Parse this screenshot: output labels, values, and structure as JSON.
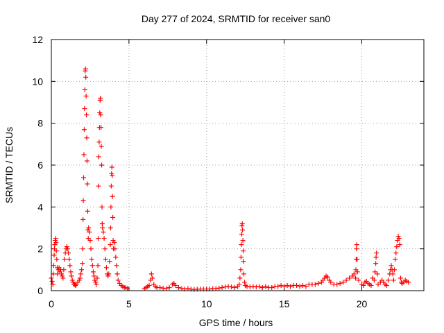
{
  "chart_data": {
    "type": "scatter",
    "title": "Day 277 of 2024, SRMTID for receiver san0",
    "xlabel": "GPS time / hours",
    "ylabel": "SRMTID / TECUs",
    "xlim": [
      0,
      24
    ],
    "ylim": [
      0,
      12
    ],
    "xticks": [
      0,
      5,
      10,
      15,
      20
    ],
    "yticks": [
      0,
      2,
      4,
      6,
      8,
      10,
      12
    ],
    "grid": true,
    "marker": "+",
    "series": [
      {
        "name": "san0",
        "color": "#ff0000",
        "points": [
          [
            0.0,
            0.6
          ],
          [
            0.05,
            0.45
          ],
          [
            0.1,
            0.3
          ],
          [
            0.12,
            0.8
          ],
          [
            0.15,
            1.2
          ],
          [
            0.18,
            1.7
          ],
          [
            0.2,
            2.0
          ],
          [
            0.22,
            2.2
          ],
          [
            0.25,
            2.4
          ],
          [
            0.28,
            2.5
          ],
          [
            0.3,
            2.3
          ],
          [
            0.32,
            1.9
          ],
          [
            0.35,
            1.5
          ],
          [
            0.38,
            1.1
          ],
          [
            0.4,
            0.8
          ],
          [
            0.45,
            1.0
          ],
          [
            0.5,
            1.1
          ],
          [
            0.55,
            0.9
          ],
          [
            0.6,
            1.0
          ],
          [
            0.65,
            0.8
          ],
          [
            0.7,
            0.7
          ],
          [
            0.75,
            0.6
          ],
          [
            0.8,
            1.0
          ],
          [
            0.85,
            1.5
          ],
          [
            0.9,
            1.8
          ],
          [
            0.95,
            2.0
          ],
          [
            1.0,
            2.1
          ],
          [
            1.05,
            2.0
          ],
          [
            1.1,
            1.8
          ],
          [
            1.15,
            1.5
          ],
          [
            1.2,
            1.2
          ],
          [
            1.25,
            0.9
          ],
          [
            1.3,
            0.7
          ],
          [
            1.35,
            0.5
          ],
          [
            1.4,
            0.4
          ],
          [
            1.45,
            0.3
          ],
          [
            1.5,
            0.3
          ],
          [
            1.55,
            0.25
          ],
          [
            1.6,
            0.3
          ],
          [
            1.7,
            0.4
          ],
          [
            1.8,
            0.5
          ],
          [
            1.85,
            0.6
          ],
          [
            1.9,
            0.8
          ],
          [
            1.95,
            1.0
          ],
          [
            2.0,
            1.3
          ],
          [
            2.02,
            2.0
          ],
          [
            2.04,
            3.4
          ],
          [
            2.06,
            4.3
          ],
          [
            2.08,
            5.4
          ],
          [
            2.1,
            6.5
          ],
          [
            2.12,
            7.7
          ],
          [
            2.14,
            8.7
          ],
          [
            2.16,
            9.6
          ],
          [
            2.18,
            10.5
          ],
          [
            2.2,
            10.6
          ],
          [
            2.22,
            10.2
          ],
          [
            2.24,
            9.3
          ],
          [
            2.26,
            8.4
          ],
          [
            2.28,
            7.3
          ],
          [
            2.3,
            6.2
          ],
          [
            2.32,
            5.1
          ],
          [
            2.34,
            3.8
          ],
          [
            2.36,
            2.9
          ],
          [
            2.38,
            2.5
          ],
          [
            2.4,
            3.0
          ],
          [
            2.45,
            2.8
          ],
          [
            2.5,
            2.4
          ],
          [
            2.55,
            2.0
          ],
          [
            2.6,
            1.5
          ],
          [
            2.65,
            1.2
          ],
          [
            2.7,
            0.9
          ],
          [
            2.75,
            0.7
          ],
          [
            2.8,
            0.5
          ],
          [
            2.85,
            0.4
          ],
          [
            2.9,
            0.3
          ],
          [
            2.95,
            0.6
          ],
          [
            3.0,
            1.2
          ],
          [
            3.02,
            2.5
          ],
          [
            3.04,
            5.0
          ],
          [
            3.06,
            6.4
          ],
          [
            3.08,
            7.1
          ],
          [
            3.1,
            7.8
          ],
          [
            3.12,
            8.5
          ],
          [
            3.14,
            9.1
          ],
          [
            3.16,
            9.2
          ],
          [
            3.18,
            8.4
          ],
          [
            3.2,
            7.8
          ],
          [
            3.22,
            6.9
          ],
          [
            3.24,
            6.0
          ],
          [
            3.26,
            4.0
          ],
          [
            3.28,
            3.2
          ],
          [
            3.3,
            3.0
          ],
          [
            3.35,
            2.8
          ],
          [
            3.4,
            2.5
          ],
          [
            3.45,
            2.0
          ],
          [
            3.5,
            1.5
          ],
          [
            3.55,
            1.1
          ],
          [
            3.6,
            0.8
          ],
          [
            3.65,
            0.7
          ],
          [
            3.7,
            0.8
          ],
          [
            3.75,
            1.4
          ],
          [
            3.8,
            2.2
          ],
          [
            3.82,
            3.0
          ],
          [
            3.84,
            4.0
          ],
          [
            3.86,
            5.0
          ],
          [
            3.88,
            5.6
          ],
          [
            3.9,
            5.9
          ],
          [
            3.92,
            5.5
          ],
          [
            3.94,
            4.5
          ],
          [
            3.96,
            3.5
          ],
          [
            3.98,
            2.4
          ],
          [
            4.0,
            2.0
          ],
          [
            4.05,
            2.3
          ],
          [
            4.1,
            2.0
          ],
          [
            4.15,
            1.6
          ],
          [
            4.2,
            1.2
          ],
          [
            4.25,
            0.8
          ],
          [
            4.3,
            0.5
          ],
          [
            4.4,
            0.35
          ],
          [
            4.5,
            0.25
          ],
          [
            4.6,
            0.2
          ],
          [
            4.7,
            0.15
          ],
          [
            4.8,
            0.15
          ],
          [
            4.9,
            0.1
          ],
          [
            6.0,
            0.1
          ],
          [
            6.1,
            0.15
          ],
          [
            6.2,
            0.2
          ],
          [
            6.3,
            0.25
          ],
          [
            6.4,
            0.5
          ],
          [
            6.45,
            0.8
          ],
          [
            6.5,
            0.6
          ],
          [
            6.6,
            0.3
          ],
          [
            6.7,
            0.2
          ],
          [
            6.8,
            0.15
          ],
          [
            7.0,
            0.15
          ],
          [
            7.2,
            0.12
          ],
          [
            7.4,
            0.1
          ],
          [
            7.6,
            0.15
          ],
          [
            7.8,
            0.3
          ],
          [
            7.9,
            0.35
          ],
          [
            8.0,
            0.25
          ],
          [
            8.2,
            0.15
          ],
          [
            8.4,
            0.1
          ],
          [
            8.6,
            0.08
          ],
          [
            8.8,
            0.1
          ],
          [
            9.0,
            0.07
          ],
          [
            9.2,
            0.06
          ],
          [
            9.4,
            0.07
          ],
          [
            9.6,
            0.08
          ],
          [
            9.8,
            0.08
          ],
          [
            10.0,
            0.08
          ],
          [
            10.2,
            0.08
          ],
          [
            10.4,
            0.1
          ],
          [
            10.6,
            0.1
          ],
          [
            10.8,
            0.12
          ],
          [
            11.0,
            0.15
          ],
          [
            11.2,
            0.18
          ],
          [
            11.4,
            0.2
          ],
          [
            11.6,
            0.18
          ],
          [
            11.8,
            0.15
          ],
          [
            12.0,
            0.2
          ],
          [
            12.1,
            0.3
          ],
          [
            12.15,
            0.6
          ],
          [
            12.2,
            1.0
          ],
          [
            12.22,
            1.6
          ],
          [
            12.24,
            2.2
          ],
          [
            12.26,
            2.7
          ],
          [
            12.28,
            3.1
          ],
          [
            12.3,
            3.2
          ],
          [
            12.32,
            2.9
          ],
          [
            12.34,
            2.4
          ],
          [
            12.36,
            1.9
          ],
          [
            12.38,
            1.4
          ],
          [
            12.4,
            0.8
          ],
          [
            12.45,
            0.4
          ],
          [
            12.5,
            0.25
          ],
          [
            12.6,
            0.2
          ],
          [
            12.8,
            0.18
          ],
          [
            13.0,
            0.2
          ],
          [
            13.2,
            0.18
          ],
          [
            13.4,
            0.2
          ],
          [
            13.6,
            0.15
          ],
          [
            13.8,
            0.2
          ],
          [
            14.0,
            0.15
          ],
          [
            14.2,
            0.15
          ],
          [
            14.4,
            0.2
          ],
          [
            14.6,
            0.2
          ],
          [
            14.8,
            0.25
          ],
          [
            15.0,
            0.2
          ],
          [
            15.2,
            0.25
          ],
          [
            15.4,
            0.2
          ],
          [
            15.6,
            0.25
          ],
          [
            15.8,
            0.25
          ],
          [
            16.0,
            0.2
          ],
          [
            16.2,
            0.25
          ],
          [
            16.4,
            0.2
          ],
          [
            16.6,
            0.3
          ],
          [
            16.8,
            0.3
          ],
          [
            17.0,
            0.3
          ],
          [
            17.2,
            0.35
          ],
          [
            17.4,
            0.4
          ],
          [
            17.5,
            0.5
          ],
          [
            17.6,
            0.6
          ],
          [
            17.7,
            0.7
          ],
          [
            17.8,
            0.65
          ],
          [
            17.9,
            0.5
          ],
          [
            18.0,
            0.4
          ],
          [
            18.2,
            0.3
          ],
          [
            18.4,
            0.3
          ],
          [
            18.6,
            0.35
          ],
          [
            18.8,
            0.4
          ],
          [
            19.0,
            0.5
          ],
          [
            19.2,
            0.6
          ],
          [
            19.4,
            0.7
          ],
          [
            19.5,
            0.8
          ],
          [
            19.6,
            0.6
          ],
          [
            19.62,
            1.0
          ],
          [
            19.64,
            1.5
          ],
          [
            19.66,
            2.0
          ],
          [
            19.68,
            2.2
          ],
          [
            19.7,
            1.5
          ],
          [
            19.72,
            0.9
          ],
          [
            19.8,
            0.5
          ],
          [
            20.0,
            0.3
          ],
          [
            20.1,
            0.25
          ],
          [
            20.2,
            0.4
          ],
          [
            20.3,
            0.45
          ],
          [
            20.4,
            0.35
          ],
          [
            20.5,
            0.3
          ],
          [
            20.6,
            0.25
          ],
          [
            20.7,
            0.6
          ],
          [
            20.8,
            0.5
          ],
          [
            20.85,
            0.9
          ],
          [
            20.9,
            1.3
          ],
          [
            20.92,
            1.6
          ],
          [
            20.95,
            1.8
          ],
          [
            21.0,
            0.8
          ],
          [
            21.05,
            0.3
          ],
          [
            21.2,
            0.4
          ],
          [
            21.3,
            0.5
          ],
          [
            21.4,
            0.4
          ],
          [
            21.5,
            0.3
          ],
          [
            21.6,
            0.25
          ],
          [
            21.7,
            0.5
          ],
          [
            21.8,
            0.8
          ],
          [
            21.85,
            1.0
          ],
          [
            21.9,
            1.2
          ],
          [
            21.95,
            1.0
          ],
          [
            22.0,
            0.8
          ],
          [
            22.05,
            0.5
          ],
          [
            22.1,
            1.0
          ],
          [
            22.15,
            1.5
          ],
          [
            22.2,
            1.8
          ],
          [
            22.25,
            2.1
          ],
          [
            22.3,
            2.4
          ],
          [
            22.35,
            2.6
          ],
          [
            22.4,
            2.5
          ],
          [
            22.45,
            2.2
          ],
          [
            22.5,
            0.6
          ],
          [
            22.55,
            0.4
          ],
          [
            22.6,
            0.35
          ],
          [
            22.7,
            0.4
          ],
          [
            22.8,
            0.5
          ],
          [
            22.9,
            0.45
          ],
          [
            23.0,
            0.4
          ]
        ]
      }
    ]
  }
}
